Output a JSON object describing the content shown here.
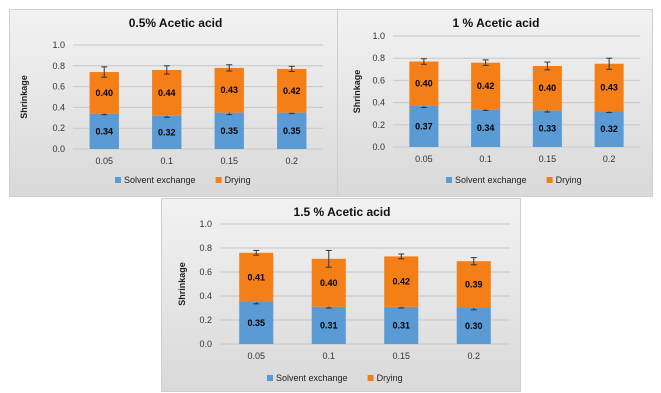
{
  "colors": {
    "solvent": "#5b9bd5",
    "drying": "#f57f17",
    "grid": "#c8c8c8",
    "error": "#333333"
  },
  "chart_data": [
    {
      "type": "bar",
      "stacked": true,
      "title": "0.5% Acetic acid",
      "xlabel": "",
      "ylabel": "Shrinkage",
      "ylim": [
        0,
        1.0
      ],
      "yticks": [
        "0.0",
        "0.2",
        "0.4",
        "0.6",
        "0.8",
        "1.0"
      ],
      "categories": [
        "0.05",
        "0.1",
        "0.15",
        "0.2"
      ],
      "grid": true,
      "legend": "bottom",
      "series": [
        {
          "name": "Solvent exchange",
          "values": [
            0.34,
            0.32,
            0.35,
            0.35
          ],
          "labels": [
            "0.34",
            "0.32",
            "0.35",
            "0.35"
          ],
          "errors": [
            0.01,
            0.015,
            0.02,
            0.01
          ]
        },
        {
          "name": "Drying",
          "values": [
            0.4,
            0.44,
            0.43,
            0.42
          ],
          "labels": [
            "0.40",
            "0.44",
            "0.43",
            "0.42"
          ],
          "errors": [
            0.05,
            0.04,
            0.03,
            0.025
          ]
        }
      ]
    },
    {
      "type": "bar",
      "stacked": true,
      "title": "1 % Acetic acid",
      "xlabel": "",
      "ylabel": "Shrinkage",
      "ylim": [
        0,
        1.0
      ],
      "yticks": [
        "0.0",
        "0.2",
        "0.4",
        "0.6",
        "0.8",
        "1.0"
      ],
      "categories": [
        "0.05",
        "0.1",
        "0.15",
        "0.2"
      ],
      "grid": true,
      "legend": "bottom",
      "series": [
        {
          "name": "Solvent exchange",
          "values": [
            0.37,
            0.34,
            0.33,
            0.32
          ],
          "labels": [
            "0.37",
            "0.34",
            "0.33",
            "0.32"
          ],
          "errors": [
            0.015,
            0.01,
            0.015,
            0.01
          ]
        },
        {
          "name": "Drying",
          "values": [
            0.4,
            0.42,
            0.4,
            0.43
          ],
          "labels": [
            "0.40",
            "0.42",
            "0.40",
            "0.43"
          ],
          "errors": [
            0.025,
            0.025,
            0.035,
            0.05
          ]
        }
      ]
    },
    {
      "type": "bar",
      "stacked": true,
      "title": "1.5 % Acetic acid",
      "xlabel": "",
      "ylabel": "Shrinkage",
      "ylim": [
        0,
        1.0
      ],
      "yticks": [
        "0.0",
        "0.2",
        "0.4",
        "0.6",
        "0.8",
        "1.0"
      ],
      "categories": [
        "0.05",
        "0.1",
        "0.15",
        "0.2"
      ],
      "grid": true,
      "legend": "bottom",
      "series": [
        {
          "name": "Solvent exchange",
          "values": [
            0.35,
            0.31,
            0.31,
            0.3
          ],
          "labels": [
            "0.35",
            "0.31",
            "0.31",
            "0.30"
          ],
          "errors": [
            0.015,
            0.01,
            0.01,
            0.015
          ]
        },
        {
          "name": "Drying",
          "values": [
            0.41,
            0.4,
            0.42,
            0.39
          ],
          "labels": [
            "0.41",
            "0.40",
            "0.42",
            "0.39"
          ],
          "errors": [
            0.02,
            0.07,
            0.02,
            0.03
          ]
        }
      ]
    }
  ]
}
